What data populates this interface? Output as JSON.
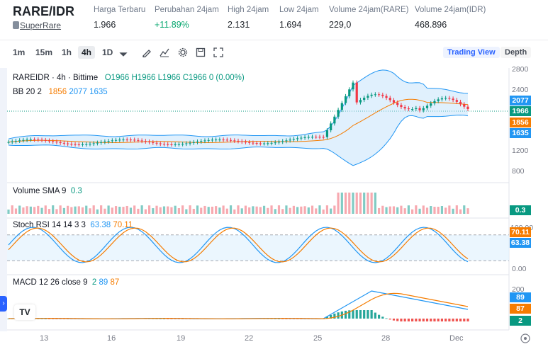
{
  "header": {
    "pair": "RARE/IDR",
    "coin_link": "SuperRare",
    "stats": [
      {
        "label": "Harga Terbaru",
        "value": "1.966"
      },
      {
        "label": "Perubahan 24jam",
        "value": "+11.89%"
      },
      {
        "label": "High 24jam",
        "value": "2.131"
      },
      {
        "label": "Low 24jam",
        "value": "1.694"
      },
      {
        "label": "Volume 24jam(RARE)",
        "value": "229,0"
      },
      {
        "label": "Volume 24jam(IDR)",
        "value": "468.896"
      }
    ]
  },
  "toolbar": {
    "intervals": [
      "1m",
      "15m",
      "1h",
      "4h",
      "1D"
    ],
    "active_interval": "4h",
    "views": [
      "Trading View",
      "Depth"
    ]
  },
  "legend": {
    "symbol": "RAREIDR · 4h · Bittime",
    "o": "O1966",
    "h": "H1966",
    "l": "L1966",
    "c": "C1966",
    "chg": "0 (0.00%)",
    "bb_label": "BB 20 2",
    "bb_mid": "1856",
    "bb_up": "2077",
    "bb_low": "1635",
    "vol_label": "Volume SMA 9",
    "vol_val": "0.3",
    "stoch_label": "Stoch RSI 14 14 3 3",
    "stoch_k": "63.38",
    "stoch_d": "70.11",
    "macd_label": "MACD 12 26 close 9",
    "macd_hist": "2",
    "macd_line": "89",
    "macd_sig": "87"
  },
  "price_axis": [
    "2800",
    "2400",
    "1200",
    "800"
  ],
  "stoch_axis": [
    "100.00",
    "0.00"
  ],
  "macd_axis": [
    "200"
  ],
  "tags": {
    "bb_up": "2077",
    "last": "1966",
    "bb_mid": "1856",
    "bb_low": "1635",
    "vol": "0.3",
    "stoch_d": "70.11",
    "stoch_k": "63.38",
    "macd_line": "89",
    "macd_sig": "87",
    "macd_hist": "2"
  },
  "x_axis": [
    "13",
    "16",
    "19",
    "22",
    "25",
    "28",
    "Dec"
  ],
  "colors": {
    "up": "#089981",
    "down": "#f23645",
    "bb": "#2196f3",
    "basis": "#f57c00"
  }
}
